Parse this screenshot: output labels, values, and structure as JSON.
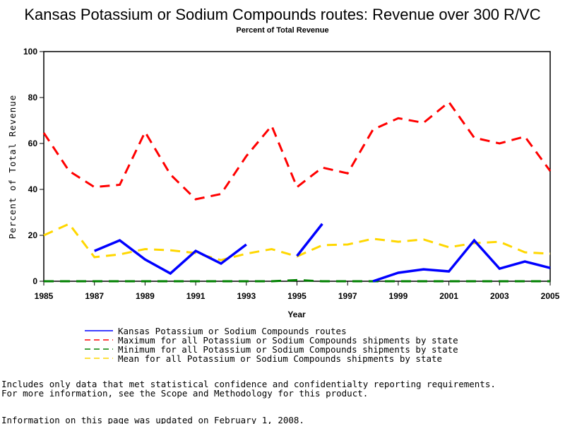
{
  "chart_data": {
    "type": "line",
    "title": "Kansas Potassium or Sodium Compounds routes: Revenue over 300 R/VC",
    "subtitle": "Percent of Total Revenue",
    "xlabel": "Year",
    "ylabel": "Percent of Total Revenue",
    "xlim": [
      1985,
      2005
    ],
    "ylim": [
      0,
      100
    ],
    "xticks": [
      1985,
      1987,
      1989,
      1991,
      1993,
      1995,
      1997,
      1999,
      2001,
      2003,
      2005
    ],
    "yticks": [
      0,
      20,
      40,
      60,
      80,
      100
    ],
    "grid": false,
    "legend_position": "bottom",
    "x": [
      1985,
      1986,
      1987,
      1988,
      1989,
      1990,
      1991,
      1992,
      1993,
      1994,
      1995,
      1996,
      1997,
      1998,
      1999,
      2000,
      2001,
      2002,
      2003,
      2004,
      2005
    ],
    "series": [
      {
        "name": "Kansas Potassium or Sodium Compounds routes",
        "color": "#0000ff",
        "style": "solid",
        "values": [
          null,
          null,
          13.2,
          17.8,
          9.5,
          3.4,
          13.2,
          7.7,
          16,
          null,
          11,
          25,
          null,
          0,
          3.7,
          5.2,
          4.3,
          17.8,
          5.5,
          8.6,
          5.8
        ]
      },
      {
        "name": "Maximum for all Potassium or Sodium Compounds shipments by state",
        "color": "#ff0000",
        "style": "dashed",
        "values": [
          64.6,
          48,
          41,
          42,
          65,
          46.5,
          35.7,
          38,
          54.5,
          67.7,
          41,
          49.5,
          47,
          66,
          71,
          69,
          78,
          62.5,
          60,
          63,
          48
        ]
      },
      {
        "name": "Minimum for all Potassium or Sodium Compounds shipments by state",
        "color": "#008000",
        "style": "dashed",
        "values": [
          0,
          0,
          0,
          0,
          0,
          0,
          0,
          0,
          0,
          0,
          0.5,
          0,
          0,
          0,
          0,
          0,
          0,
          0,
          0,
          0,
          0
        ]
      },
      {
        "name": "Mean for all Potassium or Sodium Compounds shipments by state",
        "color": "#ffd700",
        "style": "dashed",
        "values": [
          20,
          25,
          10.5,
          11.7,
          14,
          13.5,
          12.3,
          9.2,
          12,
          14,
          10.8,
          15.7,
          16,
          18.5,
          17.2,
          18.2,
          14.8,
          16.6,
          17.2,
          12.6,
          12
        ]
      }
    ]
  },
  "notes": {
    "line1": "Includes only data that met statistical confidence and confidentialty reporting requirements.",
    "line2": "For more information, see the Scope and Methodology for this product.",
    "updated": "Information on this page was updated on February 1, 2008."
  }
}
